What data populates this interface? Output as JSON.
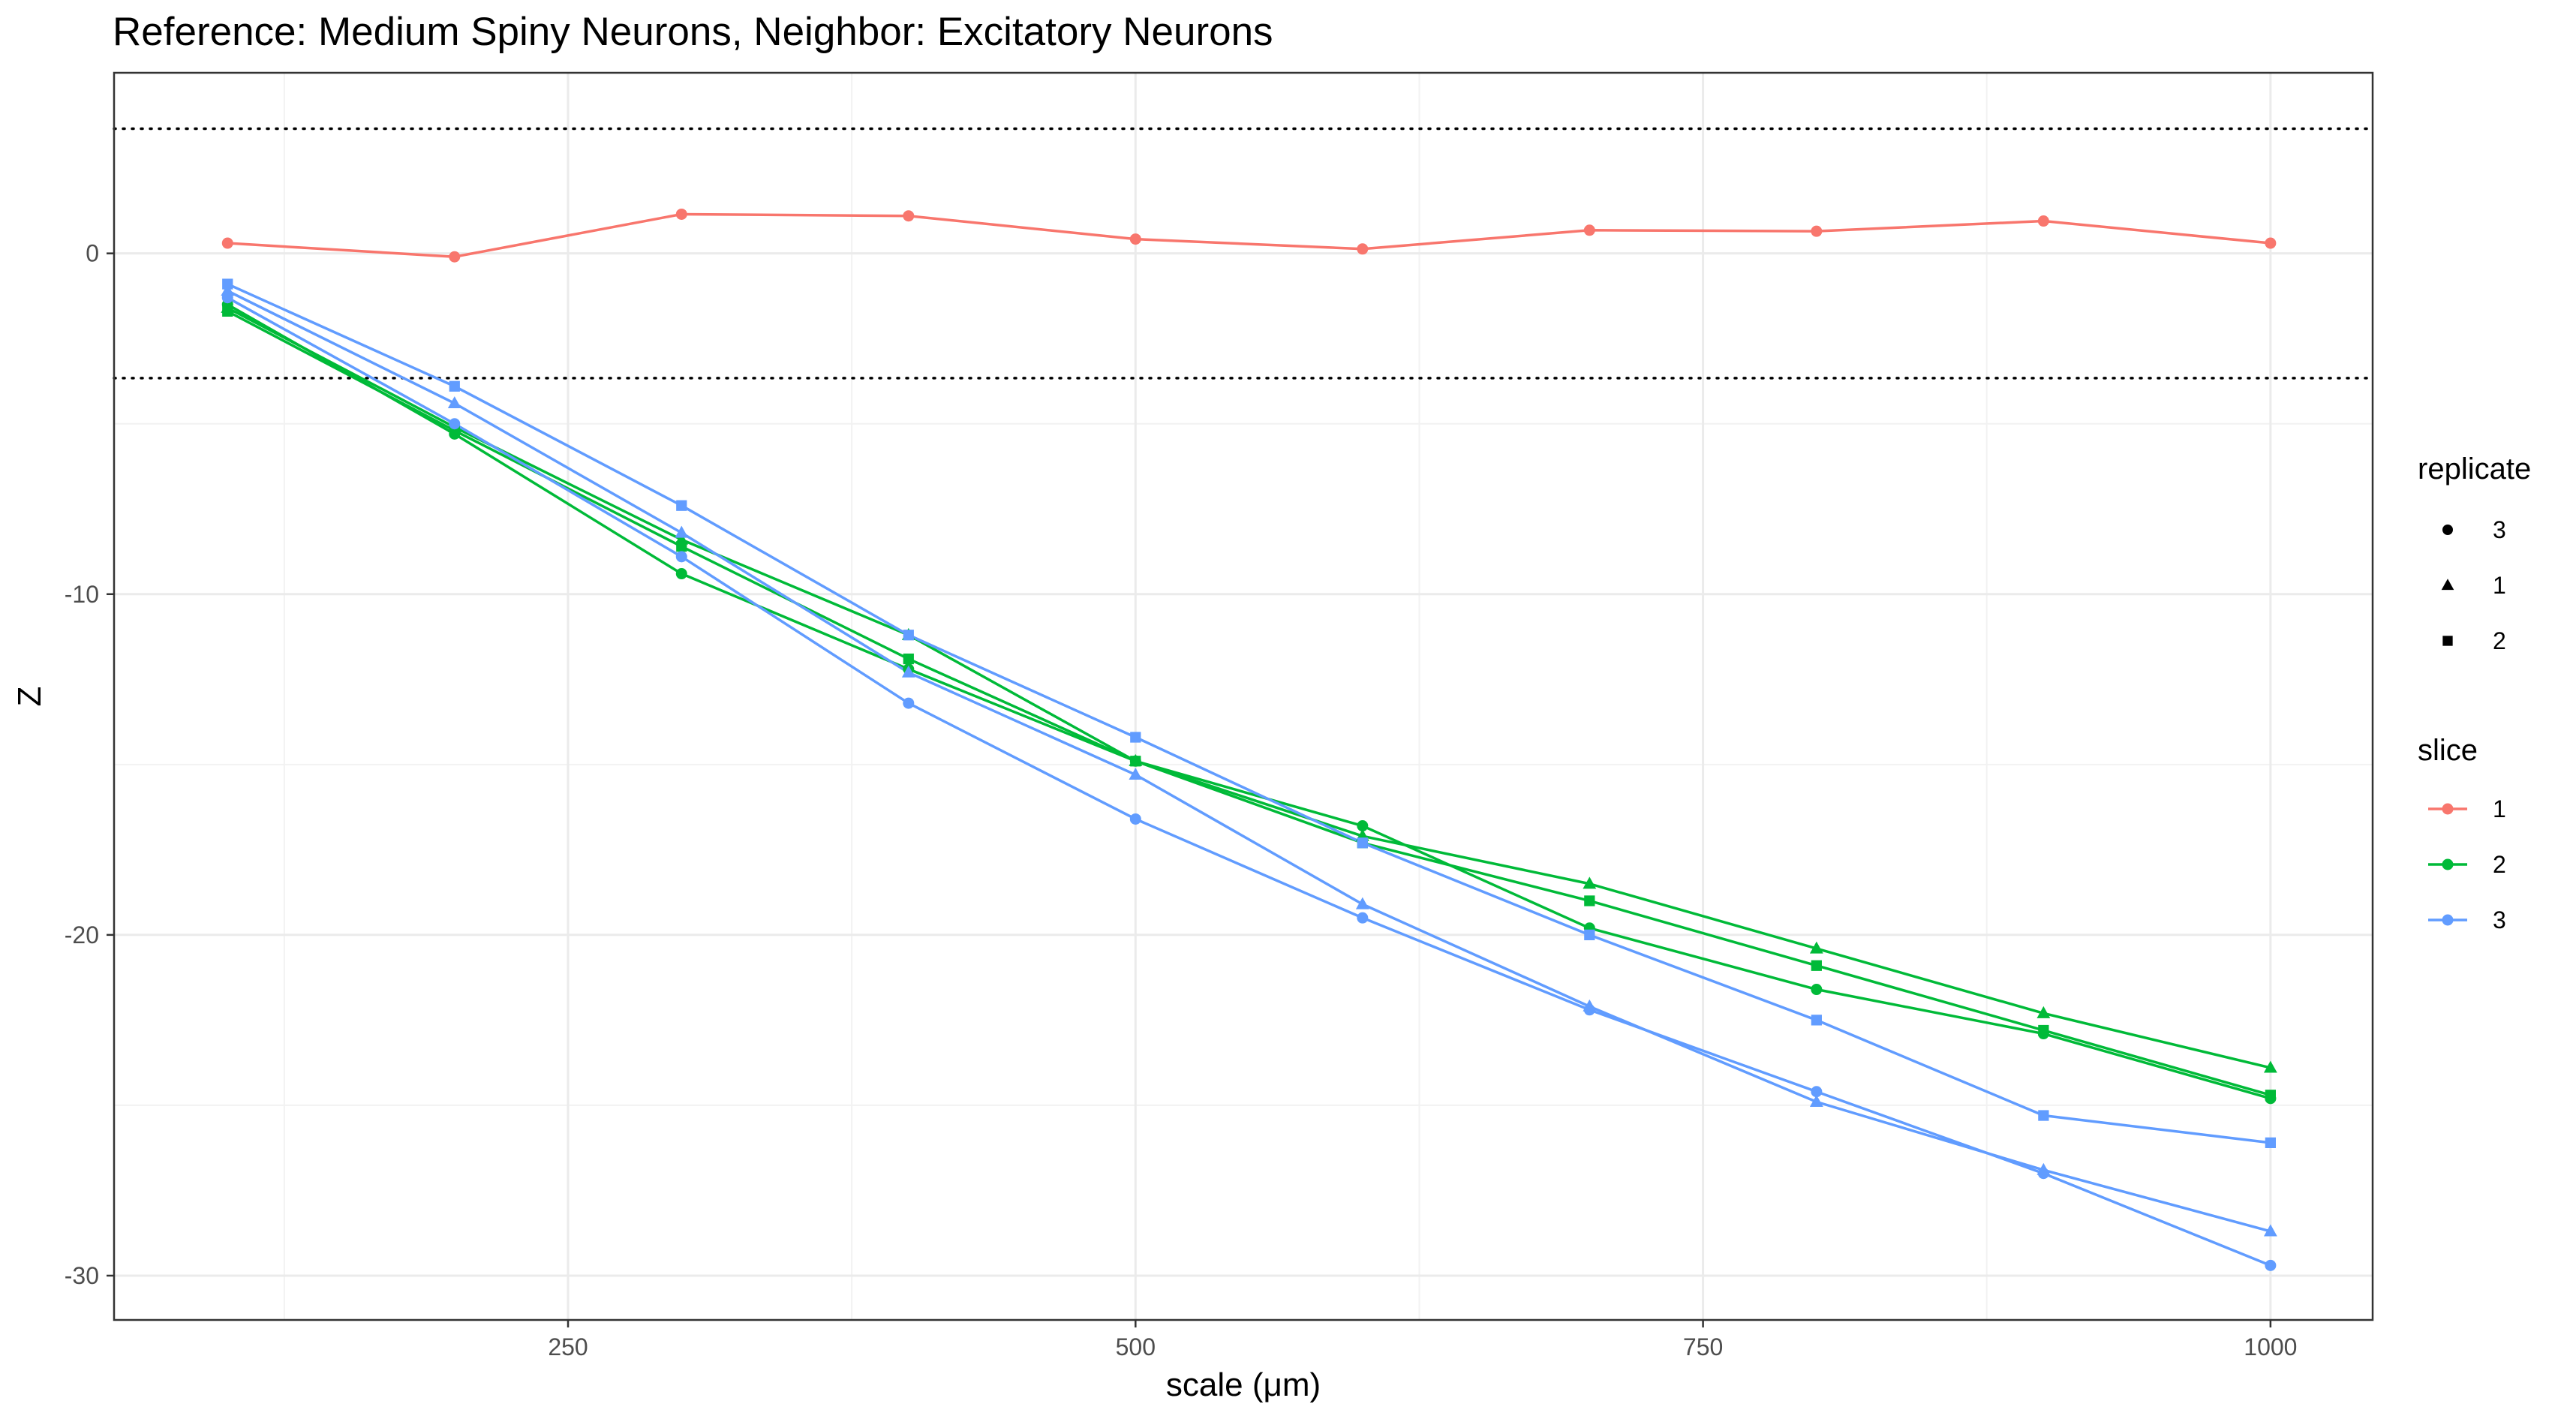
{
  "chart_data": {
    "type": "line",
    "title": "Reference: Medium Spiny Neurons, Neighbor: Excitatory Neurons",
    "xlabel": "scale (μm)",
    "ylabel": "Z",
    "xlim": [
      50,
      1045
    ],
    "ylim": [
      -31.3,
      5.3
    ],
    "x_ticks": [
      250,
      500,
      750,
      1000
    ],
    "x_tick_labels": [
      "250",
      "500",
      "750",
      "1000"
    ],
    "y_ticks": [
      0,
      -10,
      -20,
      -30
    ],
    "y_tick_labels": [
      "0",
      "-10",
      "-20",
      "-30"
    ],
    "grid": true,
    "reference_lines": [
      3.66,
      -3.66
    ],
    "x": [
      100,
      200,
      300,
      400,
      500,
      600,
      700,
      800,
      900,
      1000
    ],
    "slice_colors": {
      "1": "#F8766D",
      "2": "#00BA38",
      "3": "#619CFF"
    },
    "series": [
      {
        "slice": "1",
        "replicate": "3",
        "shape": "circle",
        "values": [
          0.3,
          -0.1,
          1.15,
          1.1,
          0.42,
          0.13,
          0.68,
          0.65,
          0.95,
          0.3
        ]
      },
      {
        "slice": "2",
        "replicate": "3",
        "shape": "circle",
        "values": [
          -1.5,
          -5.3,
          -9.4,
          -12.2,
          -14.9,
          -16.8,
          -19.8,
          -21.6,
          -22.9,
          -24.8
        ]
      },
      {
        "slice": "2",
        "replicate": "1",
        "shape": "triangle",
        "values": [
          -1.6,
          -5.1,
          -8.4,
          -11.2,
          -14.9,
          -17.1,
          -18.5,
          -20.4,
          -22.3,
          -23.9
        ]
      },
      {
        "slice": "2",
        "replicate": "2",
        "shape": "square",
        "values": [
          -1.7,
          -5.2,
          -8.6,
          -11.9,
          -14.9,
          -17.3,
          -19.0,
          -20.9,
          -22.8,
          -24.7
        ]
      },
      {
        "slice": "3",
        "replicate": "3",
        "shape": "circle",
        "values": [
          -1.3,
          -5.0,
          -8.9,
          -13.2,
          -16.6,
          -19.5,
          -22.2,
          -24.6,
          -27.0,
          -29.7
        ]
      },
      {
        "slice": "3",
        "replicate": "1",
        "shape": "triangle",
        "values": [
          -1.1,
          -4.4,
          -8.2,
          -12.3,
          -15.3,
          -19.1,
          -22.1,
          -24.9,
          -26.9,
          -28.7
        ]
      },
      {
        "slice": "3",
        "replicate": "2",
        "shape": "square",
        "values": [
          -0.9,
          -3.9,
          -7.4,
          -11.2,
          -14.2,
          -17.3,
          -20.0,
          -22.5,
          -25.3,
          -26.1
        ]
      }
    ],
    "legend": {
      "position": "right",
      "replicate_title": "replicate",
      "replicate_items": [
        {
          "label": "3",
          "shape": "circle"
        },
        {
          "label": "1",
          "shape": "triangle"
        },
        {
          "label": "2",
          "shape": "square"
        }
      ],
      "slice_title": "slice",
      "slice_items": [
        {
          "label": "1",
          "color": "#F8766D"
        },
        {
          "label": "2",
          "color": "#00BA38"
        },
        {
          "label": "3",
          "color": "#619CFF"
        }
      ]
    }
  }
}
